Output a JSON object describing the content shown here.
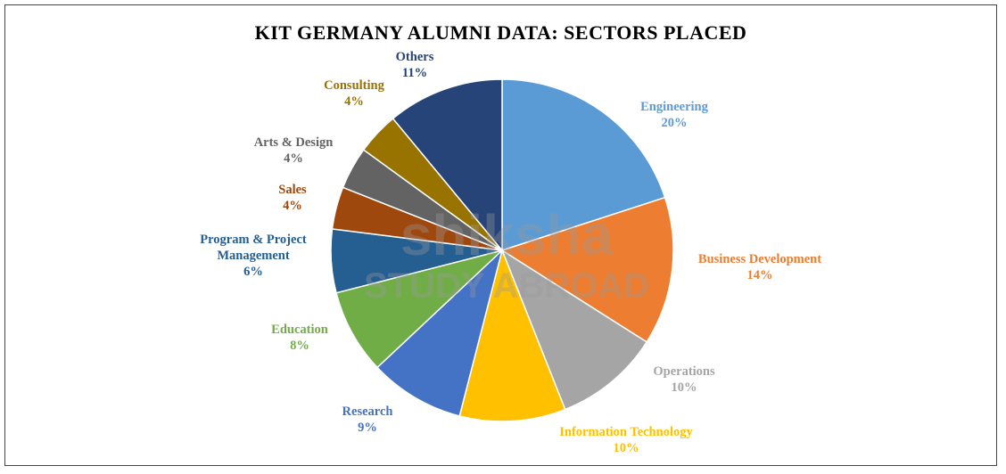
{
  "chart_data": {
    "type": "pie",
    "title": "KIT GERMANY ALUMNI DATA: SECTORS PLACED",
    "slices": [
      {
        "label": "Engineering",
        "value_label": "20%",
        "value": 20,
        "color": "#5b9bd5"
      },
      {
        "label": "Business Development",
        "value_label": "14%",
        "value": 14,
        "color": "#ed7d31"
      },
      {
        "label": "Operations",
        "value_label": "10%",
        "value": 10,
        "color": "#a5a5a5"
      },
      {
        "label": "Information  Technology",
        "value_label": "10%",
        "value": 10,
        "color": "#ffc000"
      },
      {
        "label": "Research",
        "value_label": "9%",
        "value": 9,
        "color": "#4472c4"
      },
      {
        "label": "Education",
        "value_label": "8%",
        "value": 8,
        "color": "#70ad47"
      },
      {
        "label": "Program  & Project\nManagement",
        "value_label": "6%",
        "value": 6,
        "color": "#255e91"
      },
      {
        "label": "Sales",
        "value_label": "4%",
        "value": 4,
        "color": "#9e480e"
      },
      {
        "label": "Arts & Design",
        "value_label": "4%",
        "value": 4,
        "color": "#636363"
      },
      {
        "label": "Consulting",
        "value_label": "4%",
        "value": 4,
        "color": "#997300"
      },
      {
        "label": "Others",
        "value_label": "11%",
        "value": 11,
        "color": "#264478"
      }
    ]
  },
  "watermark": {
    "line1": "shiksha",
    "line2": "STUDY ABROAD",
    "color": "#9a9a9a"
  }
}
